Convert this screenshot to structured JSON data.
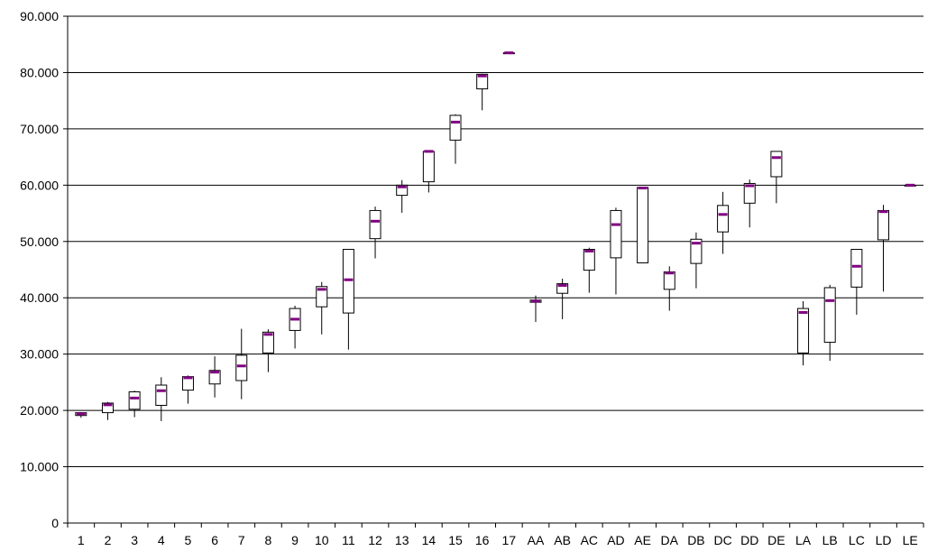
{
  "chart_data": {
    "type": "box",
    "title": "",
    "xlabel": "",
    "ylabel": "",
    "ylim": [
      0,
      90
    ],
    "y_ticks": [
      0,
      10,
      20,
      30,
      40,
      50,
      60,
      70,
      80,
      90
    ],
    "y_tick_labels": [
      "0",
      "10.000",
      "20.000",
      "30.000",
      "40.000",
      "50.000",
      "60.000",
      "70.000",
      "80.000",
      "90.000"
    ],
    "grid": "horizontal",
    "legend": "none",
    "colors": {
      "box_fill": "#ffffff",
      "box_stroke": "#000000",
      "median": "#800080",
      "grid": "#000000"
    },
    "categories": [
      "1",
      "2",
      "3",
      "4",
      "5",
      "6",
      "7",
      "8",
      "9",
      "10",
      "11",
      "12",
      "13",
      "14",
      "15",
      "16",
      "17",
      "AA",
      "AB",
      "AC",
      "AD",
      "AE",
      "DA",
      "DB",
      "DC",
      "DD",
      "DE",
      "LA",
      "LB",
      "LC",
      "LD",
      "LE"
    ],
    "min": [
      18.7,
      18.3,
      18.8,
      18.1,
      21.2,
      22.3,
      22.0,
      26.8,
      31.0,
      33.5,
      30.8,
      47.0,
      55.1,
      58.7,
      63.8,
      73.3,
      83.5,
      35.7,
      36.2,
      40.9,
      40.6,
      46.2,
      37.7,
      41.7,
      47.8,
      52.5,
      56.8,
      28.0,
      28.8,
      37.0,
      41.1,
      60.0
    ],
    "q1": [
      19.1,
      19.6,
      20.2,
      20.9,
      23.6,
      24.7,
      25.3,
      30.2,
      34.2,
      38.4,
      37.3,
      50.5,
      58.2,
      60.6,
      68.0,
      77.1,
      83.5,
      39.2,
      40.8,
      44.9,
      47.1,
      46.2,
      41.5,
      46.1,
      51.7,
      56.8,
      61.5,
      30.2,
      32.1,
      41.9,
      50.3,
      60.0
    ],
    "median": [
      19.4,
      21.0,
      22.2,
      23.5,
      25.8,
      26.8,
      27.9,
      33.5,
      36.2,
      41.5,
      43.2,
      53.6,
      59.7,
      66.0,
      71.2,
      79.4,
      83.5,
      39.4,
      42.2,
      48.3,
      53.0,
      59.5,
      44.4,
      49.7,
      54.8,
      59.9,
      64.9,
      37.4,
      39.5,
      45.6,
      55.3,
      60.0
    ],
    "q3": [
      19.6,
      21.3,
      23.3,
      24.5,
      26.0,
      27.1,
      29.8,
      33.9,
      38.1,
      42.0,
      48.6,
      55.5,
      60.0,
      66.0,
      72.4,
      79.7,
      83.5,
      39.6,
      42.5,
      48.6,
      55.5,
      59.6,
      44.6,
      50.4,
      56.4,
      60.3,
      66.0,
      38.1,
      41.8,
      48.6,
      55.5,
      60.0
    ],
    "max": [
      19.7,
      21.5,
      23.5,
      25.9,
      26.2,
      29.6,
      34.5,
      34.4,
      38.6,
      42.8,
      48.6,
      56.2,
      60.9,
      66.2,
      72.6,
      79.8,
      83.5,
      40.4,
      43.4,
      48.9,
      56.0,
      59.7,
      45.6,
      51.6,
      58.8,
      61.0,
      66.0,
      39.4,
      42.3,
      48.6,
      56.5,
      60.0
    ]
  }
}
